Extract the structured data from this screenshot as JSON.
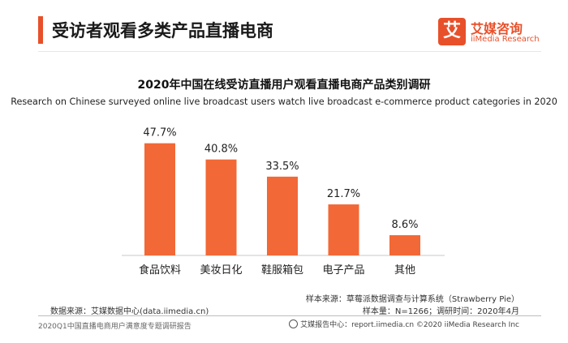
{
  "header": {
    "title": "受访者观看多类产品直播电商"
  },
  "logo": {
    "mark": "艾",
    "name_cn": "艾媒咨询",
    "name_en": "iiMedia Research"
  },
  "chart_data": {
    "type": "bar",
    "title": "2020年中国在线受访直播用户观看直播电商产品类别调研",
    "subtitle": "Research on Chinese surveyed online live broadcast users watch live broadcast e-commerce product categories in 2020",
    "categories": [
      "食品饮料",
      "美妆日化",
      "鞋服箱包",
      "电子产品",
      "其他"
    ],
    "values": [
      47.7,
      40.8,
      33.5,
      21.7,
      8.6
    ],
    "labels": [
      "47.7%",
      "40.8%",
      "33.5%",
      "21.7%",
      "8.6%"
    ],
    "ylim": [
      0,
      50
    ],
    "bar_color": "#f26836",
    "grid": false,
    "legend": "none"
  },
  "footer": {
    "sample_source": "样本来源：草莓派数据调查与计算系统（Strawberry Pie）",
    "sample_info": "样本量：N=1266；调研时间：2020年4月",
    "data_source": "数据来源：艾媒数据中心(data.iimedia.cn)",
    "report_name": "2020Q1中国直播电商用户满意度专题调研报告",
    "report_center": "艾媒报告中心：report.iimedia.cn  ©2020  iiMedia Research  Inc"
  }
}
